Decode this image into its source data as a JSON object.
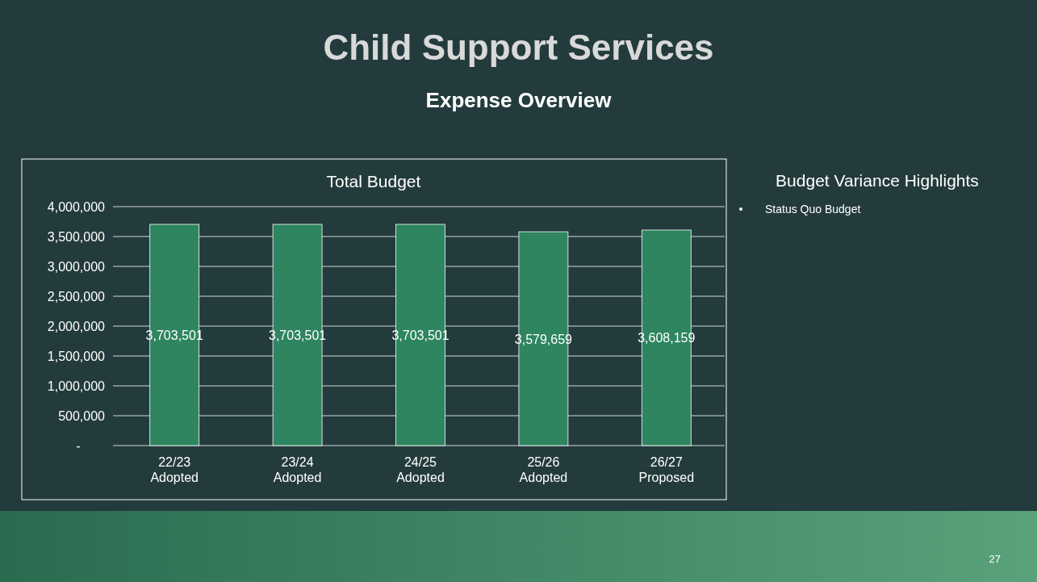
{
  "chart_data": {
    "type": "bar",
    "title": "Total Budget",
    "annotations": [
      "Child Support Services",
      "Expense Overview",
      "Budget Variance Highlights",
      "Status Quo Budget",
      "27"
    ],
    "categories": [
      "22/23\nAdopted",
      "23/24\nAdopted",
      "24/25\nAdopted",
      "25/26\nAdopted",
      "26/27\nProposed"
    ],
    "values": [
      3703501,
      3703501,
      3703501,
      3579659,
      3608159
    ],
    "color": "#2e8560",
    "ylim": [
      0,
      4000000
    ],
    "yticks": [
      {
        "value": 0,
        "label": "-"
      },
      {
        "value": 500000,
        "label": "500,000"
      },
      {
        "value": 1000000,
        "label": "1,000,000"
      },
      {
        "value": 1500000,
        "label": "1,500,000"
      },
      {
        "value": 2000000,
        "label": "2,000,000"
      },
      {
        "value": 2500000,
        "label": "2,500,000"
      },
      {
        "value": 3000000,
        "label": "3,000,000"
      },
      {
        "value": 3500000,
        "label": "3,500,000"
      },
      {
        "value": 4000000,
        "label": "4,000,000"
      }
    ],
    "value_labels": [
      "3,703,501",
      "3,703,501",
      "3,703,501",
      "3,579,659",
      "3,608,159"
    ],
    "grid": "y"
  }
}
